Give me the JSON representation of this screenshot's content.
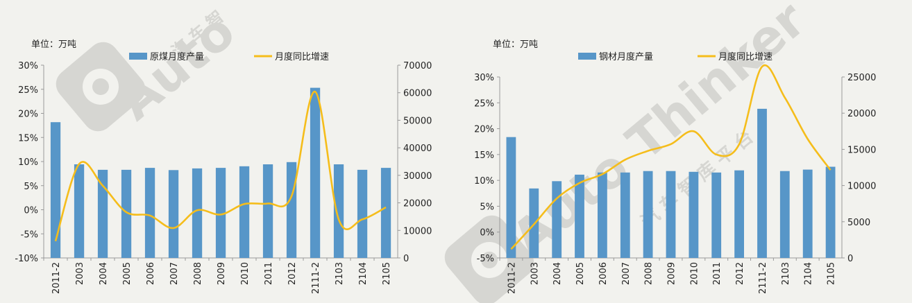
{
  "chart_data": [
    {
      "type": "bar",
      "unit_label": "单位：万吨",
      "categories": [
        "2011-2",
        "2003",
        "2004",
        "2005",
        "2006",
        "2007",
        "2008",
        "2009",
        "2010",
        "2011",
        "2012",
        "2111-2",
        "2103",
        "2104",
        "2105"
      ],
      "series": [
        {
          "name": "原煤月度产量",
          "type": "bar",
          "axis": "right",
          "values": [
            49300,
            34000,
            32000,
            32000,
            32700,
            31900,
            32500,
            32700,
            33300,
            34000,
            34800,
            61800,
            34000,
            32000,
            32700
          ]
        },
        {
          "name": "月度同比增速",
          "type": "line",
          "axis": "left",
          "values": [
            -6.5,
            9.5,
            5.0,
            -0.5,
            -1.2,
            -3.8,
            -0.1,
            -1.0,
            1.2,
            1.3,
            2.8,
            24.5,
            -2.0,
            -2.0,
            0.5
          ]
        }
      ],
      "y_left": {
        "min": -10,
        "max": 30,
        "ticks": [
          "-10%",
          "-5%",
          "0%",
          "5%",
          "10%",
          "15%",
          "20%",
          "25%",
          "30%"
        ]
      },
      "y_right": {
        "min": 0,
        "max": 70000,
        "ticks": [
          "0",
          "10000",
          "20000",
          "30000",
          "40000",
          "50000",
          "60000",
          "70000"
        ]
      },
      "legend_position": "top",
      "colors": {
        "bar": "#5796c8",
        "line": "#f5bd1b"
      }
    },
    {
      "type": "bar",
      "unit_label": "单位：万吨",
      "categories": [
        "2011-2",
        "2003",
        "2004",
        "2005",
        "2006",
        "2007",
        "2008",
        "2009",
        "2010",
        "2011",
        "2012",
        "2111-2",
        "2103",
        "2104",
        "2105"
      ],
      "series": [
        {
          "name": "钢材月度产量",
          "type": "bar",
          "axis": "right",
          "values": [
            16700,
            9600,
            10600,
            11500,
            11800,
            11800,
            12000,
            12000,
            11900,
            11800,
            12100,
            20600,
            12000,
            12200,
            12600
          ]
        },
        {
          "name": "月度同比增速",
          "type": "line",
          "axis": "left",
          "values": [
            -3.3,
            1.5,
            6.5,
            9.5,
            11.2,
            14.0,
            15.7,
            17.0,
            19.5,
            15.0,
            17.0,
            32.0,
            26.0,
            18.0,
            12.0
          ]
        }
      ],
      "y_left": {
        "min": -5,
        "max": 30,
        "ticks": [
          "-5%",
          "0%",
          "5%",
          "10%",
          "15%",
          "20%",
          "25%",
          "30%"
        ]
      },
      "y_right": {
        "min": 0,
        "max": 25000,
        "ticks": [
          "0",
          "5000",
          "10000",
          "15000",
          "20000",
          "25000"
        ]
      },
      "legend_position": "top",
      "colors": {
        "bar": "#5796c8",
        "line": "#f5bd1b"
      }
    }
  ],
  "watermark": {
    "left_text": "Auto",
    "left_sub": "汽 车 智",
    "right_text": "Auto Thinker",
    "right_sub": "汽 车 智 库 平 台",
    "icon": "eye-icon"
  }
}
